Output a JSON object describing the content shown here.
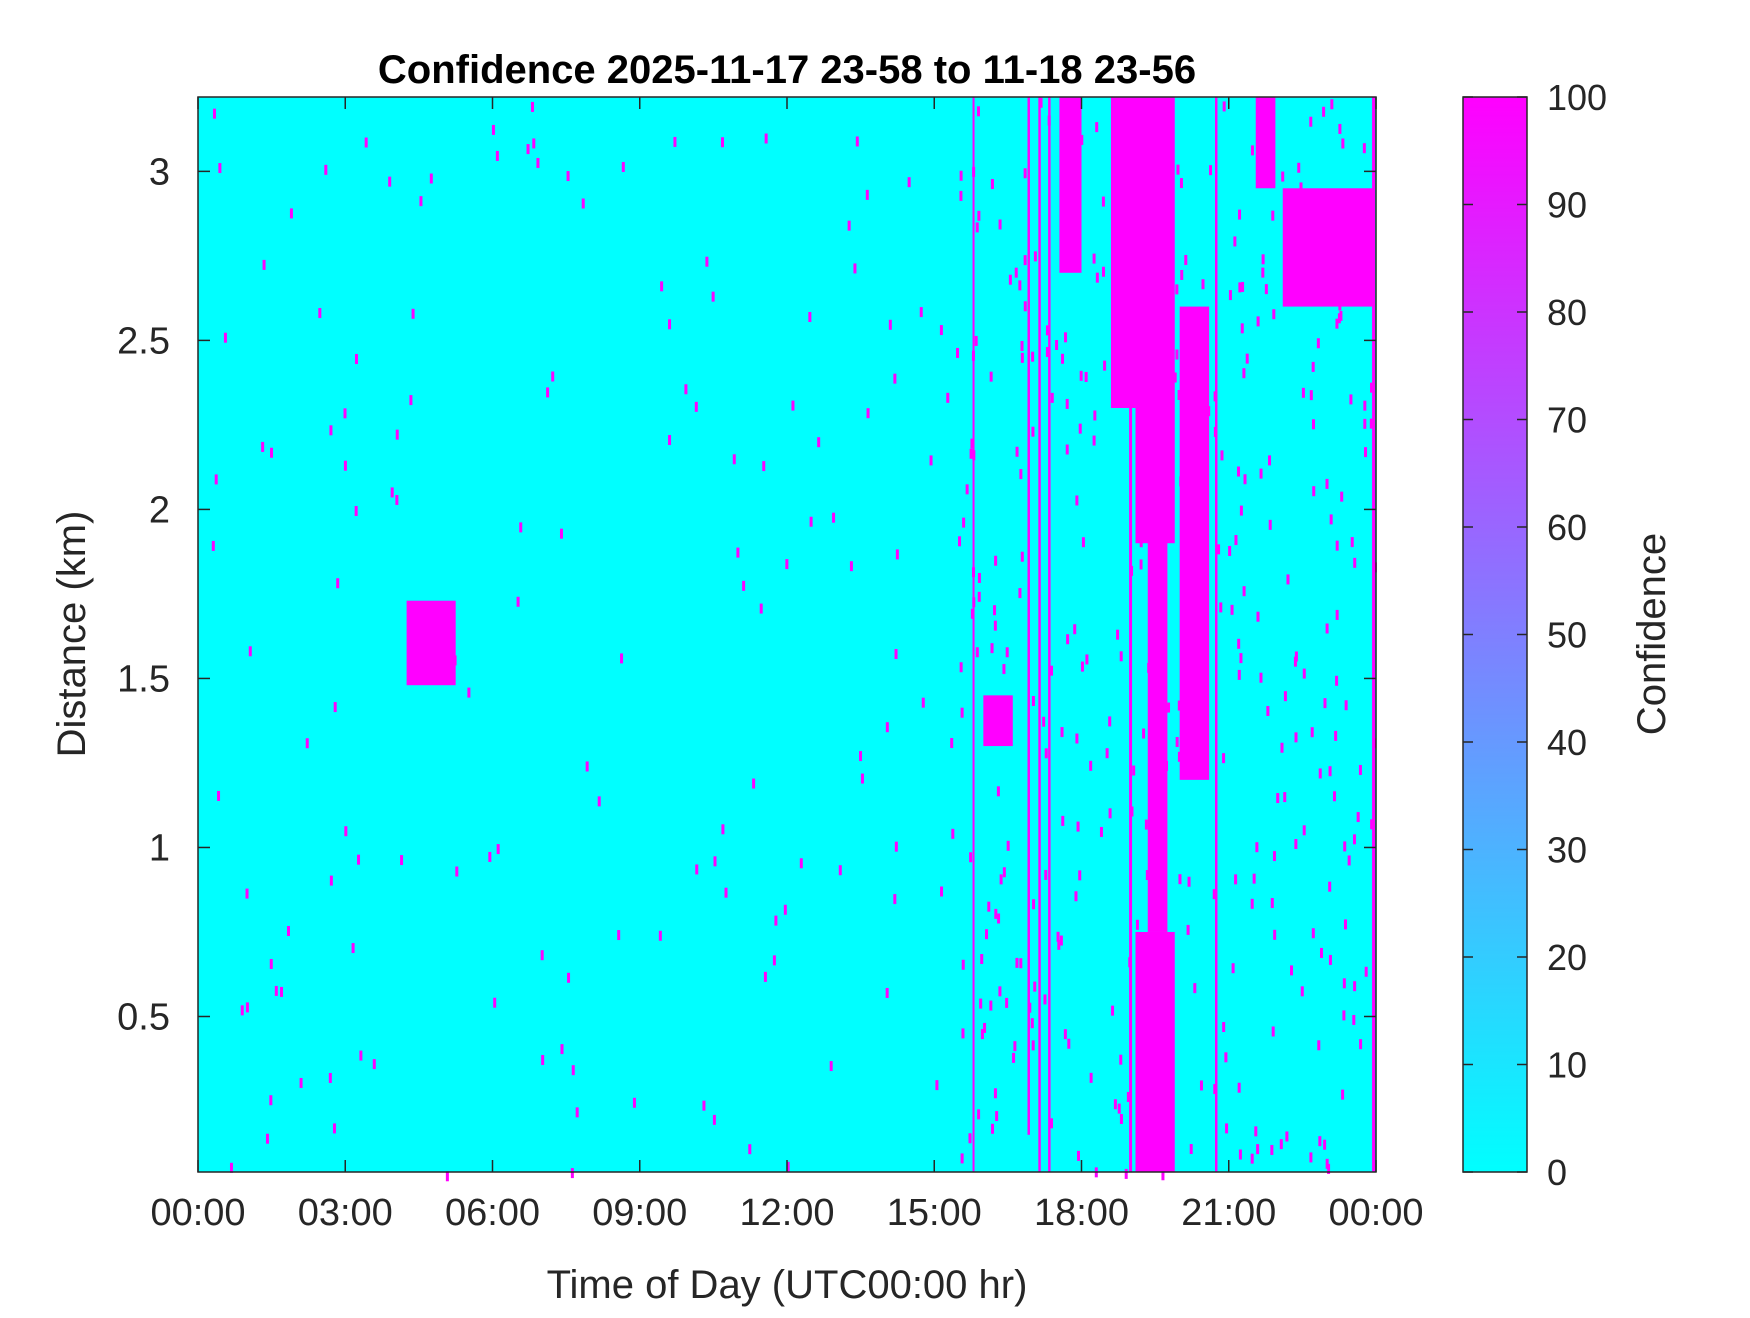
{
  "chart_data": {
    "type": "heatmap",
    "title": "Confidence 2025-11-17 23-58 to 11-18 23-56",
    "xlabel": "Time of Day (UTC00:00 hr)",
    "ylabel": "Distance (km)",
    "xlim_hours": [
      0,
      24
    ],
    "ylim": [
      0.04,
      3.22
    ],
    "x_tick_values": [
      0,
      3,
      6,
      9,
      12,
      15,
      18,
      21,
      24
    ],
    "x_tick_labels": [
      "00:00",
      "03:00",
      "06:00",
      "09:00",
      "12:00",
      "15:00",
      "18:00",
      "21:00",
      "00:00"
    ],
    "y_tick_values": [
      0.5,
      1,
      1.5,
      2,
      2.5,
      3
    ],
    "y_tick_labels": [
      "0.5",
      "1",
      "1.5",
      "2",
      "2.5",
      "3"
    ],
    "colorbar": {
      "label": "Confidence",
      "range": [
        0,
        100
      ],
      "tick_values": [
        0,
        10,
        20,
        30,
        40,
        50,
        60,
        70,
        80,
        90,
        100
      ],
      "tick_labels": [
        "0",
        "10",
        "20",
        "30",
        "40",
        "50",
        "60",
        "70",
        "80",
        "90",
        "100"
      ],
      "low_color": "#00FFFF",
      "high_color": "#FF00FF"
    },
    "background_value": 0,
    "grid": false,
    "high_confidence_regions": [
      {
        "name": "patch",
        "t": [
          4.25,
          5.25
        ],
        "d": [
          1.48,
          1.73
        ],
        "value": 100
      },
      {
        "name": "line",
        "t": [
          15.78,
          15.82
        ],
        "d": [
          0.04,
          3.22
        ],
        "value": 100
      },
      {
        "name": "line",
        "t": [
          16.9,
          16.95
        ],
        "d": [
          0.15,
          3.22
        ],
        "value": 100
      },
      {
        "name": "line",
        "t": [
          17.12,
          17.17
        ],
        "d": [
          0.04,
          3.22
        ],
        "value": 100
      },
      {
        "name": "line",
        "t": [
          17.32,
          17.37
        ],
        "d": [
          0.04,
          3.22
        ],
        "value": 100
      },
      {
        "name": "line",
        "t": [
          18.97,
          19.03
        ],
        "d": [
          0.04,
          3.22
        ],
        "value": 100
      },
      {
        "name": "line",
        "t": [
          20.72,
          20.77
        ],
        "d": [
          0.04,
          3.22
        ],
        "value": 100
      },
      {
        "name": "line",
        "t": [
          23.92,
          23.98
        ],
        "d": [
          0.04,
          3.22
        ],
        "value": 100
      },
      {
        "name": "band",
        "t": [
          18.6,
          19.2
        ],
        "d": [
          2.3,
          3.22
        ],
        "value": 100
      },
      {
        "name": "band",
        "t": [
          19.1,
          19.9
        ],
        "d": [
          1.9,
          3.22
        ],
        "value": 100
      },
      {
        "name": "band",
        "t": [
          20.0,
          20.6
        ],
        "d": [
          1.2,
          2.6
        ],
        "value": 100
      },
      {
        "name": "band",
        "t": [
          19.1,
          19.9
        ],
        "d": [
          0.04,
          0.75
        ],
        "value": 100
      },
      {
        "name": "band",
        "t": [
          19.35,
          19.75
        ],
        "d": [
          0.75,
          2.0
        ],
        "value": 100
      },
      {
        "name": "band",
        "t": [
          21.55,
          21.95
        ],
        "d": [
          2.95,
          3.22
        ],
        "value": 100
      },
      {
        "name": "band",
        "t": [
          22.1,
          23.98
        ],
        "d": [
          2.6,
          2.95
        ],
        "value": 100
      },
      {
        "name": "band",
        "t": [
          17.55,
          18.0
        ],
        "d": [
          2.7,
          3.22
        ],
        "value": 100
      },
      {
        "name": "band",
        "t": [
          16.0,
          16.6
        ],
        "d": [
          1.3,
          1.45
        ],
        "value": 100
      }
    ]
  }
}
